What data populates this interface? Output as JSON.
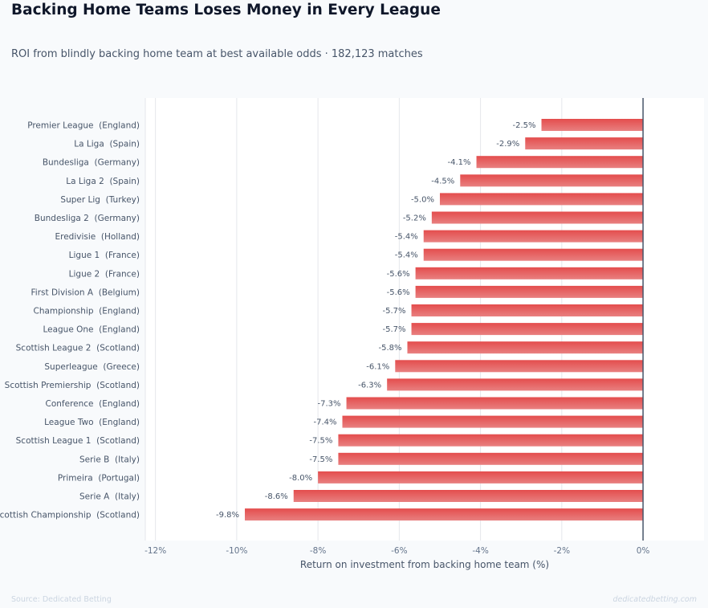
{
  "header": {
    "title": "Backing Home Teams Loses Money in Every League",
    "subtitle": "ROI from blindly backing home team at best available odds · 182,123 matches"
  },
  "footer": {
    "source": "Source: Dedicated Betting",
    "watermark": "dedicatedbetting.com"
  },
  "colors": {
    "bar_light": "#e88080",
    "bar_dark": "#e44d4d",
    "zero_line": "#475569",
    "grid": "#e5e7eb",
    "plot_bg": "#ffffff"
  },
  "chart_data": {
    "type": "bar",
    "orientation": "horizontal",
    "categories": [
      "Premier League  (England)",
      "La Liga  (Spain)",
      "Bundesliga  (Germany)",
      "La Liga 2  (Spain)",
      "Super Lig  (Turkey)",
      "Bundesliga 2  (Germany)",
      "Eredivisie  (Holland)",
      "Ligue 1  (France)",
      "Ligue 2  (France)",
      "First Division A  (Belgium)",
      "Championship  (England)",
      "League One  (England)",
      "Scottish League 2  (Scotland)",
      "Superleague  (Greece)",
      "Scottish Premiership  (Scotland)",
      "Conference  (England)",
      "League Two  (England)",
      "Scottish League 1  (Scotland)",
      "Serie B  (Italy)",
      "Primeira  (Portugal)",
      "Serie A  (Italy)",
      "Scottish Championship  (Scotland)"
    ],
    "values": [
      -2.5,
      -2.9,
      -4.1,
      -4.5,
      -5.0,
      -5.2,
      -5.4,
      -5.4,
      -5.6,
      -5.6,
      -5.7,
      -5.7,
      -5.8,
      -6.1,
      -6.3,
      -7.3,
      -7.4,
      -7.5,
      -7.5,
      -8.0,
      -8.6,
      -9.8
    ],
    "value_labels": [
      "-2.5%",
      "-2.9%",
      "-4.1%",
      "-4.5%",
      "-5.0%",
      "-5.2%",
      "-5.4%",
      "-5.4%",
      "-5.6%",
      "-5.6%",
      "-5.7%",
      "-5.7%",
      "-5.8%",
      "-6.1%",
      "-6.3%",
      "-7.3%",
      "-7.4%",
      "-7.5%",
      "-7.5%",
      "-8.0%",
      "-8.6%",
      "-9.8%"
    ],
    "xlabel": "Return on investment from backing home team (%)",
    "ylabel": "",
    "xlim": [
      -12.25,
      1.5
    ],
    "xticks": [
      -12,
      -10,
      -8,
      -6,
      -4,
      -2,
      0
    ],
    "xtick_labels": [
      "-12%",
      "-10%",
      "-8%",
      "-6%",
      "-4%",
      "-2%",
      "0%"
    ],
    "grid": true,
    "legend": "none"
  }
}
